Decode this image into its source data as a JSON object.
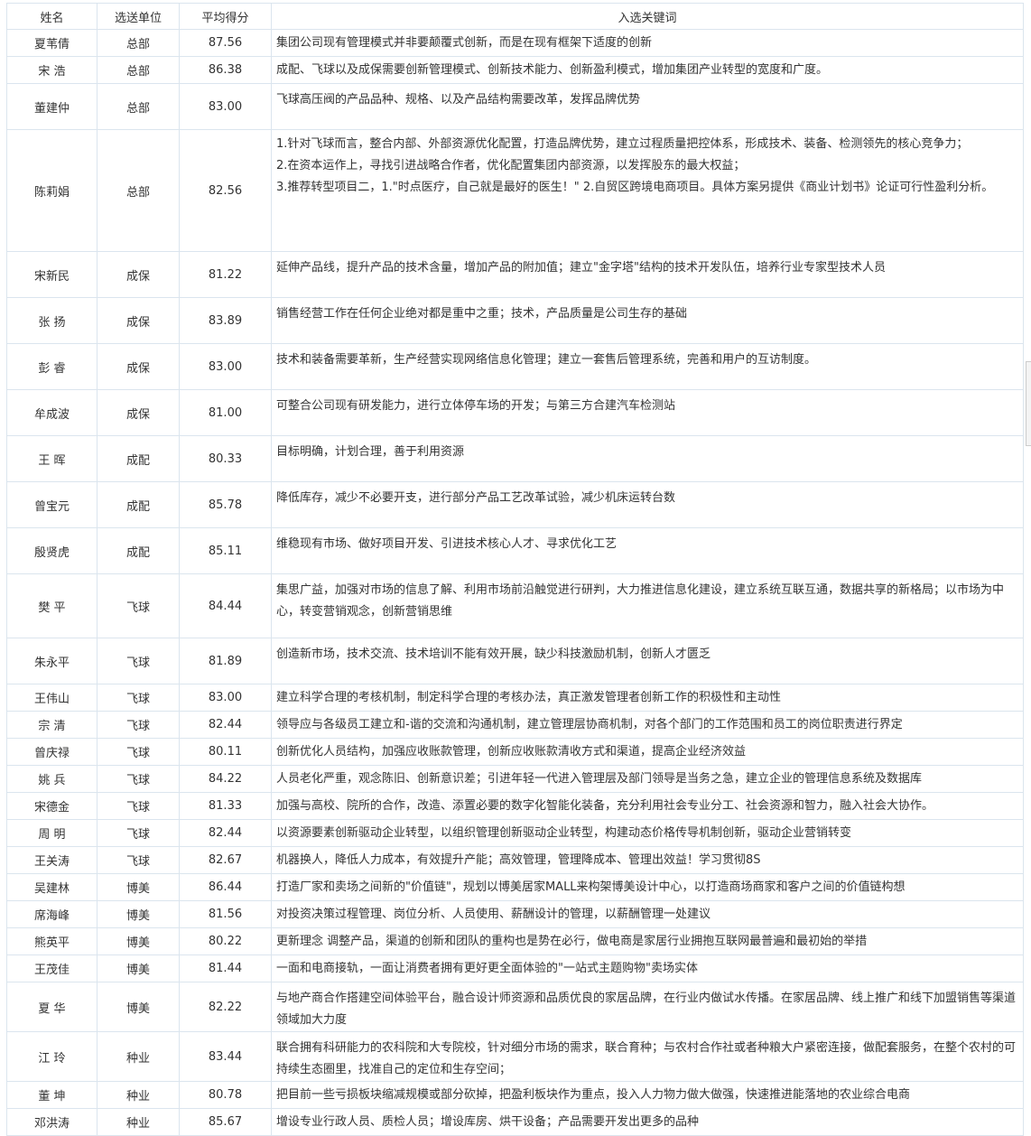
{
  "headers": [
    "姓名",
    "选送单位",
    "平均得分",
    "入选关键词"
  ],
  "rows": [
    {
      "name": "夏苇倩",
      "unit": "总部",
      "score": "87.56",
      "keywords": "集团公司现有管理模式并非要颠覆式创新，而是在现有框架下适度的创新"
    },
    {
      "name": "宋 浩",
      "unit": "总部",
      "score": "86.38",
      "keywords": "成配、飞球以及成保需要创新管理模式、创新技术能力、创新盈利模式，增加集团产业转型的宽度和广度。"
    },
    {
      "name": "董建仲",
      "unit": "总部",
      "score": "83.00",
      "keywords": "飞球高压阀的产品品种、规格、以及产品结构需要改革，发挥品牌优势"
    },
    {
      "name": "陈莉娟",
      "unit": "总部",
      "score": "82.56",
      "keywords": "1.针对飞球而言，整合内部、外部资源优化配置，打造品牌优势，建立过程质量把控体系，形成技术、装备、检测领先的核心竞争力；\n2.在资本运作上，寻找引进战略合作者，优化配置集团内部资源，以发挥股东的最大权益；\n3.推荐转型项目二，1.\"时点医疗，自己就是最好的医生！\" 2.自贸区跨境电商项目。具体方案另提供《商业计划书》论证可行性盈利分析。"
    },
    {
      "name": "宋新民",
      "unit": "成保",
      "score": "81.22",
      "keywords": "延伸产品线，提升产品的技术含量，增加产品的附加值；建立\"金字塔\"结构的技术开发队伍，培养行业专家型技术人员"
    },
    {
      "name": "张 扬",
      "unit": "成保",
      "score": "83.89",
      "keywords": "销售经营工作在任何企业绝对都是重中之重；技术，产品质量是公司生存的基础"
    },
    {
      "name": "彭 睿",
      "unit": "成保",
      "score": "83.00",
      "keywords": "技术和装备需要革新，生产经营实现网络信息化管理；建立一套售后管理系统，完善和用户的互访制度。"
    },
    {
      "name": "牟成波",
      "unit": "成保",
      "score": "81.00",
      "keywords": "可整合公司现有研发能力，进行立体停车场的开发；与第三方合建汽车检测站"
    },
    {
      "name": "王 晖",
      "unit": "成配",
      "score": "80.33",
      "keywords": "目标明确，计划合理，善于利用资源"
    },
    {
      "name": "曾宝元",
      "unit": "成配",
      "score": "85.78",
      "keywords": "降低库存，减少不必要开支，进行部分产品工艺改革试验，减少机床运转台数"
    },
    {
      "name": "殷贤虎",
      "unit": "成配",
      "score": "85.11",
      "keywords": "维稳现有市场、做好项目开发、引进技术核心人才、寻求优化工艺"
    },
    {
      "name": "樊 平",
      "unit": "飞球",
      "score": "84.44",
      "keywords": "集思广益，加强对市场的信息了解、利用市场前沿触觉进行研判，大力推进信息化建设，建立系统互联互通，数据共享的新格局；以市场为中心，转变营销观念，创新营销思维"
    },
    {
      "name": "朱永平",
      "unit": "飞球",
      "score": "81.89",
      "keywords": "创造新市场，技术交流、技术培训不能有效开展，缺少科技激励机制，创新人才匮乏"
    },
    {
      "name": "王伟山",
      "unit": "飞球",
      "score": "83.00",
      "keywords": "建立科学合理的考核机制，制定科学合理的考核办法，真正激发管理者创新工作的积极性和主动性"
    },
    {
      "name": "宗 清",
      "unit": "飞球",
      "score": "82.44",
      "keywords": "领导应与各级员工建立和-谐的交流和沟通机制，建立管理层协商机制，对各个部门的工作范围和员工的岗位职责进行界定"
    },
    {
      "name": "曾庆禄",
      "unit": "飞球",
      "score": "80.11",
      "keywords": "创新优化人员结构，加强应收账款管理，创新应收账款清收方式和渠道，提高企业经济效益"
    },
    {
      "name": "姚 兵",
      "unit": "飞球",
      "score": "84.22",
      "keywords": "人员老化严重，观念陈旧、创新意识差；引进年轻一代进入管理层及部门领导是当务之急，建立企业的管理信息系统及数据库"
    },
    {
      "name": "宋德金",
      "unit": "飞球",
      "score": "81.33",
      "keywords": "加强与高校、院所的合作，改造、添置必要的数字化智能化装备，充分利用社会专业分工、社会资源和智力，融入社会大协作。"
    },
    {
      "name": "周 明",
      "unit": "飞球",
      "score": "82.44",
      "keywords": "以资源要素创新驱动企业转型，以组织管理创新驱动企业转型，构建动态价格传导机制创新，驱动企业营销转变"
    },
    {
      "name": "王关涛",
      "unit": "飞球",
      "score": "82.67",
      "keywords": "机器换人，降低人力成本，有效提升产能；高效管理，管理降成本、管理出效益！学习贯彻8S"
    },
    {
      "name": "吴建林",
      "unit": "博美",
      "score": "86.44",
      "keywords": "打造厂家和卖场之间新的\"价值链\"，规划以博美居家MALL来构架博美设计中心，以打造商场商家和客户之间的价值链构想"
    },
    {
      "name": "席海峰",
      "unit": "博美",
      "score": "81.56",
      "keywords": "对投资决策过程管理、岗位分析、人员使用、薪酬设计的管理，以薪酬管理一处建议"
    },
    {
      "name": "熊英平",
      "unit": "博美",
      "score": "80.22",
      "keywords": "更新理念 调整产品，渠道的创新和团队的重构也是势在必行，做电商是家居行业拥抱互联网最普遍和最初始的举措"
    },
    {
      "name": "王茂佳",
      "unit": "博美",
      "score": "81.44",
      "keywords": "一面和电商接轨，一面让消费者拥有更好更全面体验的\"一站式主题购物\"卖场实体"
    },
    {
      "name": "夏 华",
      "unit": "博美",
      "score": "82.22",
      "keywords": "与地产商合作搭建空间体验平台，融合设计师资源和品质优良的家居品牌，在行业内做试水传播。在家居品牌、线上推广和线下加盟销售等渠道领域加大力度"
    },
    {
      "name": "江 玲",
      "unit": "种业",
      "score": "83.44",
      "keywords": "联合拥有科研能力的农科院和大专院校，针对细分市场的需求，联合育种；与农村合作社或者种粮大户紧密连接，做配套服务，在整个农村的可持续生态圈里，找准自己的定位和生存空间；"
    },
    {
      "name": "董 坤",
      "unit": "种业",
      "score": "80.78",
      "keywords": "把目前一些亏损板块缩减规模或部分砍掉，把盈利板块作为重点，投入人力物力做大做强，快速推进能落地的农业综合电商"
    },
    {
      "name": "邓洪涛",
      "unit": "种业",
      "score": "85.67",
      "keywords": "增设专业行政人员、质检人员；增设库房、烘干设备；产品需要开发出更多的品种"
    }
  ]
}
